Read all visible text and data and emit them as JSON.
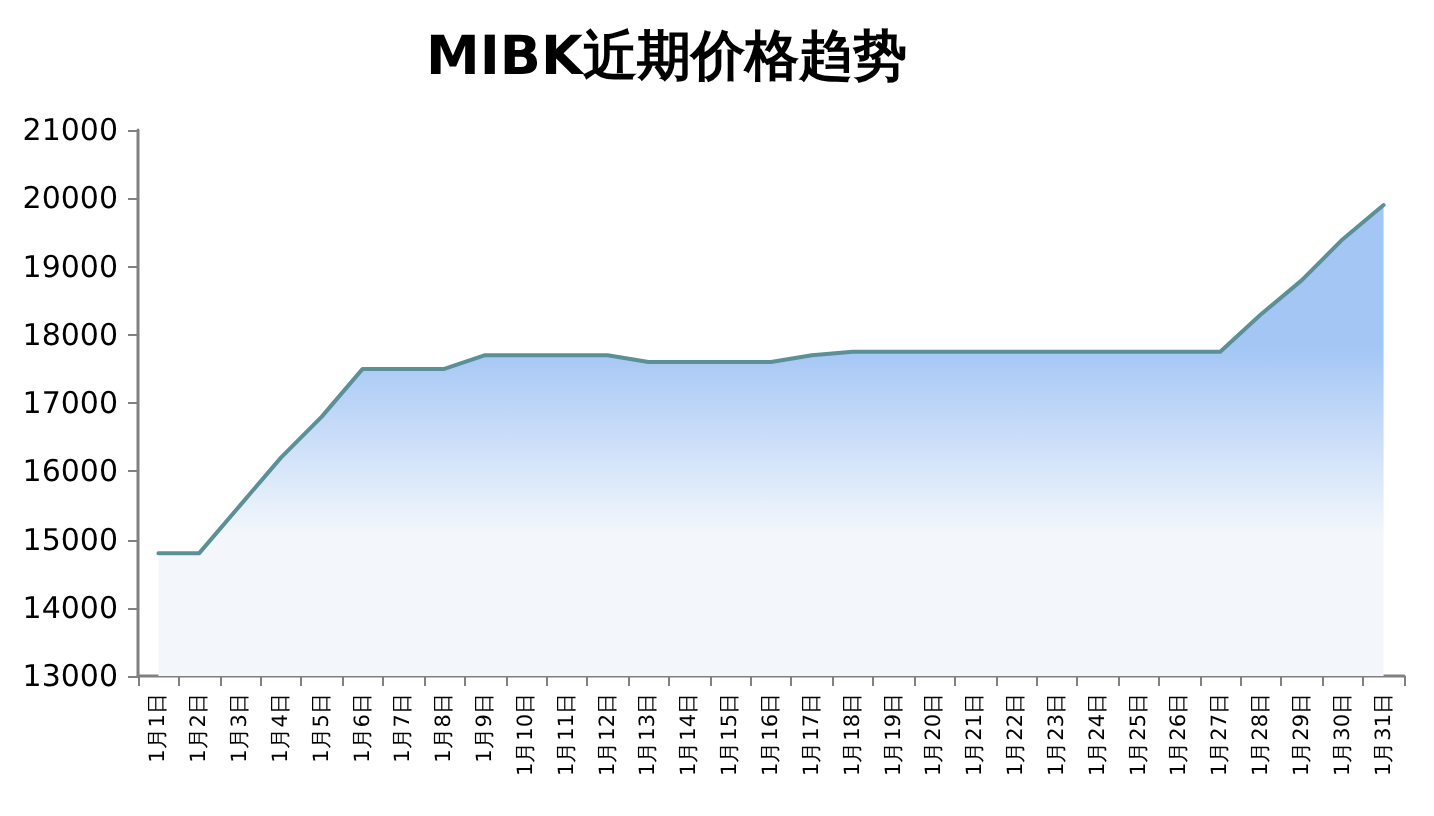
{
  "chart_data": {
    "type": "area",
    "title": "MIBK近期价格趋势",
    "categories": [
      "1月1日",
      "1月2日",
      "1月3日",
      "1月4日",
      "1月5日",
      "1月6日",
      "1月7日",
      "1月8日",
      "1月9日",
      "1月10日",
      "1月11日",
      "1月12日",
      "1月13日",
      "1月14日",
      "1月15日",
      "1月16日",
      "1月17日",
      "1月18日",
      "1月19日",
      "1月20日",
      "1月21日",
      "1月22日",
      "1月23日",
      "1月24日",
      "1月25日",
      "1月26日",
      "1月27日",
      "1月28日",
      "1月29日",
      "1月30日",
      "1月31日"
    ],
    "series": [
      {
        "color": "#5b9096",
        "values": [
          14800,
          14800,
          15500,
          16200,
          16800,
          17500,
          17500,
          17500,
          17700,
          17700,
          17700,
          17700,
          17600,
          17600,
          17600,
          17600,
          17700,
          17750,
          17750,
          17750,
          17750,
          17750,
          17750,
          17750,
          17750,
          17750,
          17750,
          18300,
          18800,
          19400,
          19900
        ]
      }
    ],
    "ylim": [
      13000,
      21000
    ],
    "yticks": [
      13000,
      14000,
      15000,
      16000,
      17000,
      18000,
      19000,
      20000,
      21000
    ],
    "grid": false,
    "marker": "none",
    "line_style": "solid"
  }
}
